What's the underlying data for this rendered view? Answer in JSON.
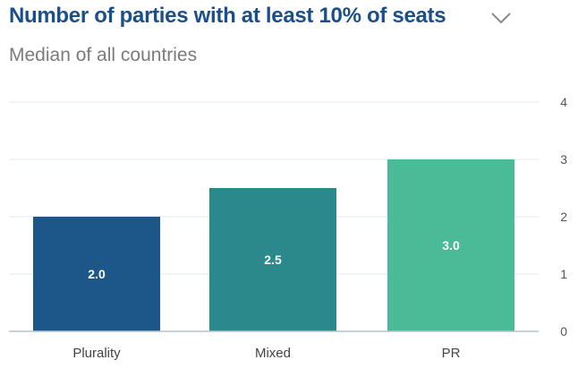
{
  "header": {
    "title": "Number of parties with at least 10% of seats",
    "subtitle": "Median of all countries",
    "menu_icon": "chevron-down-icon"
  },
  "colors": {
    "title": "#1b4f8a",
    "gridline": "#e3e8ec",
    "baseline": "#b9c3cc"
  },
  "chart_data": {
    "type": "bar",
    "categories": [
      "Plurality",
      "Mixed",
      "PR"
    ],
    "values": [
      2.0,
      2.5,
      3.0
    ],
    "value_labels": [
      "2.0",
      "2.5",
      "3.0"
    ],
    "bar_colors": [
      "#1d5789",
      "#2c898b",
      "#4bbb97"
    ],
    "ylim": [
      0,
      4
    ],
    "yticks": [
      0,
      1,
      2,
      3,
      4
    ],
    "ytick_labels": [
      "0",
      "1",
      "2",
      "3",
      "4"
    ],
    "y_axis_position": "right",
    "grid": true,
    "xlabel": "",
    "ylabel": ""
  }
}
